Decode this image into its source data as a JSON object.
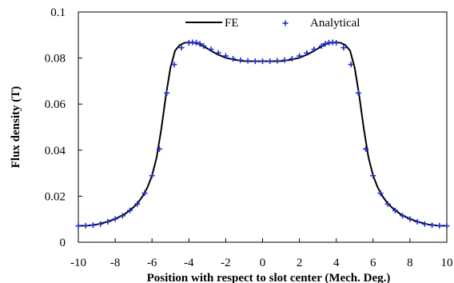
{
  "chart_data": {
    "type": "line",
    "xlabel": "Position with respect to slot center (Mech. Deg.)",
    "ylabel": "Flux density (T)",
    "xlim": [
      -10,
      10
    ],
    "ylim": [
      0,
      0.1
    ],
    "x_ticks": [
      -10,
      -8,
      -6,
      -4,
      -2,
      0,
      2,
      4,
      6,
      8,
      10
    ],
    "x_tick_labels": [
      "-10",
      "-8",
      "-6",
      "-4",
      "-2",
      "0",
      "2",
      "4",
      "6",
      "8",
      "10"
    ],
    "y_ticks": [
      0,
      0.02,
      0.04,
      0.06,
      0.08,
      0.1
    ],
    "y_tick_labels": [
      "0",
      "0.02",
      "0.04",
      "0.06",
      "0.08",
      "0.1"
    ],
    "grid": false,
    "legend": {
      "placement": "top-center",
      "entries": [
        "FE",
        "Analytical"
      ]
    },
    "series": [
      {
        "name": "FE",
        "style": "line",
        "color": "#000000",
        "x": [
          -10,
          -9.5,
          -9,
          -8.5,
          -8,
          -7.5,
          -7,
          -6.75,
          -6.5,
          -6.25,
          -6,
          -5.75,
          -5.5,
          -5.25,
          -5,
          -4.75,
          -4.5,
          -4.25,
          -4,
          -3.75,
          -3.5,
          -3.25,
          -3,
          -2.5,
          -2,
          -1.5,
          -1,
          -0.5,
          0,
          0.5,
          1,
          1.5,
          2,
          2.5,
          3,
          3.25,
          3.5,
          3.75,
          4,
          4.25,
          4.5,
          4.75,
          5,
          5.25,
          5.5,
          5.75,
          6,
          6.25,
          6.5,
          6.75,
          7,
          7.5,
          8,
          8.5,
          9,
          9.5,
          10
        ],
        "y": [
          0.0071,
          0.0072,
          0.0077,
          0.0087,
          0.0101,
          0.0121,
          0.0152,
          0.0173,
          0.0201,
          0.0238,
          0.0289,
          0.0368,
          0.049,
          0.0635,
          0.0758,
          0.0832,
          0.0856,
          0.0866,
          0.0868,
          0.0867,
          0.0862,
          0.0853,
          0.0841,
          0.0818,
          0.0801,
          0.0792,
          0.0787,
          0.0786,
          0.0786,
          0.0786,
          0.0787,
          0.0792,
          0.0801,
          0.0818,
          0.0841,
          0.0853,
          0.0862,
          0.0867,
          0.0868,
          0.0866,
          0.0856,
          0.0832,
          0.0758,
          0.0635,
          0.049,
          0.0368,
          0.0289,
          0.0238,
          0.0201,
          0.0173,
          0.0152,
          0.0121,
          0.0101,
          0.0087,
          0.0077,
          0.0072,
          0.0071
        ]
      },
      {
        "name": "Analytical",
        "style": "plus-markers",
        "color": "#1f2fd0",
        "x": [
          -10,
          -9.6,
          -9.2,
          -8.8,
          -8.4,
          -8.0,
          -7.6,
          -7.2,
          -6.8,
          -6.4,
          -6.0,
          -5.6,
          -5.2,
          -4.8,
          -4.4,
          -4.0,
          -3.8,
          -3.6,
          -3.4,
          -3.2,
          -2.8,
          -2.4,
          -2.0,
          -1.6,
          -1.2,
          -0.8,
          -0.4,
          0,
          0.4,
          0.8,
          1.2,
          1.6,
          2.0,
          2.4,
          2.8,
          3.2,
          3.4,
          3.6,
          3.8,
          4.0,
          4.4,
          4.8,
          5.2,
          5.6,
          6.0,
          6.4,
          6.8,
          7.2,
          7.6,
          8.0,
          8.4,
          8.8,
          9.2,
          9.6,
          10
        ],
        "y": [
          0.0071,
          0.0072,
          0.0074,
          0.0079,
          0.0089,
          0.0101,
          0.0115,
          0.0138,
          0.0166,
          0.0213,
          0.0289,
          0.0405,
          0.0648,
          0.0772,
          0.0845,
          0.0866,
          0.0868,
          0.0867,
          0.0862,
          0.0852,
          0.0838,
          0.0822,
          0.0809,
          0.0797,
          0.0791,
          0.0788,
          0.0786,
          0.0786,
          0.0786,
          0.0788,
          0.0791,
          0.0797,
          0.0809,
          0.0822,
          0.0838,
          0.0852,
          0.0862,
          0.0867,
          0.0868,
          0.0866,
          0.0845,
          0.0772,
          0.0648,
          0.0405,
          0.0289,
          0.0213,
          0.0166,
          0.0138,
          0.0115,
          0.0101,
          0.0089,
          0.0079,
          0.0074,
          0.0072,
          0.0071
        ]
      }
    ]
  }
}
